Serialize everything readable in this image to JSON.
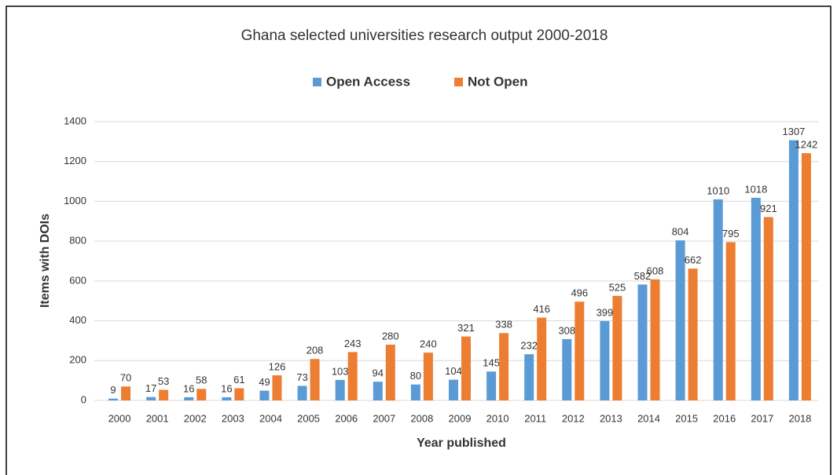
{
  "chart_data": {
    "type": "bar",
    "title": "Ghana selected universities research output 2000-2018",
    "x_label": "Year published",
    "y_label": "Items with DOIs",
    "categories": [
      "2000",
      "2001",
      "2002",
      "2003",
      "2004",
      "2005",
      "2006",
      "2007",
      "2008",
      "2009",
      "2010",
      "2011",
      "2012",
      "2013",
      "2014",
      "2015",
      "2016",
      "2017",
      "2018"
    ],
    "series": [
      {
        "name": "Open Access",
        "color": "#5b9bd5",
        "values": [
          9,
          17,
          16,
          16,
          49,
          73,
          103,
          94,
          80,
          104,
          145,
          232,
          308,
          399,
          582,
          804,
          1010,
          1018,
          1307
        ]
      },
      {
        "name": "Not Open",
        "color": "#ed7d31",
        "values": [
          70,
          53,
          58,
          61,
          126,
          208,
          243,
          280,
          240,
          321,
          338,
          416,
          496,
          525,
          608,
          662,
          795,
          921,
          1242
        ]
      }
    ],
    "ylim": [
      0,
      1400
    ],
    "yticks": [
      0,
      200,
      400,
      600,
      800,
      1000,
      1200,
      1400
    ],
    "grid": true,
    "legend": "top"
  }
}
